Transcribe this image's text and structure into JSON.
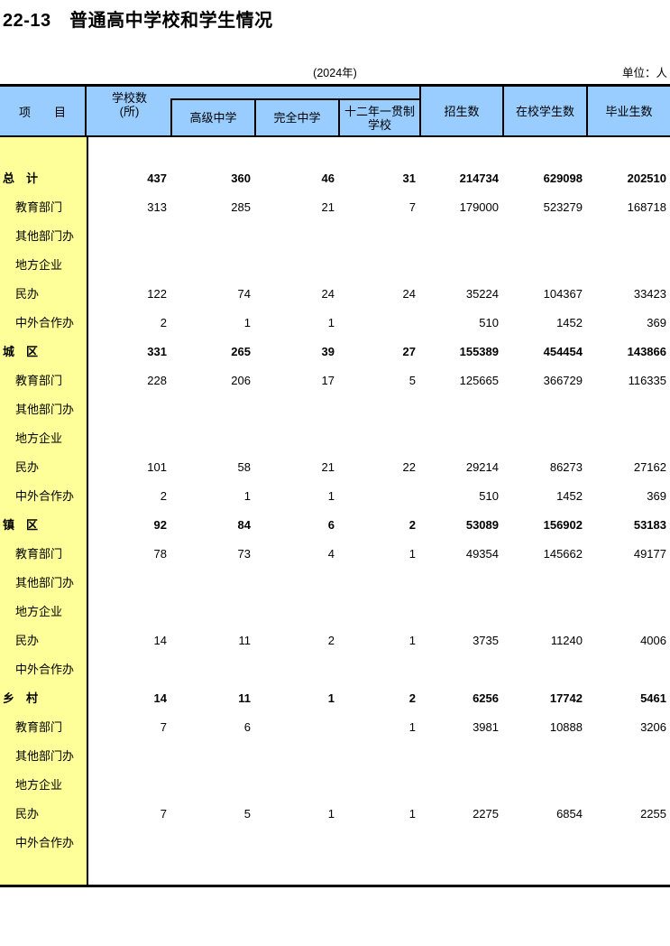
{
  "page": {
    "title": "22-13　普通高中学校和学生情况",
    "year_note": "(2024年)",
    "unit_note": "单位：人"
  },
  "colors": {
    "header_bg": "#99CCFF",
    "label_col_bg": "#FFFF99",
    "border": "#000000"
  },
  "table": {
    "header": {
      "col_item": "项　　目",
      "col_schools_line1": "学校数",
      "col_schools_line2": "(所)",
      "col_senior_high": "高级中学",
      "col_complete_middle": "完全中学",
      "col_twelve_year_line1": "十二年一贯制",
      "col_twelve_year_line2": "学校",
      "col_enrollment": "招生数",
      "col_students_on_roll": "在校学生数",
      "col_graduates": "毕业生数"
    },
    "rows": [
      {
        "label": "总　计",
        "bold": true,
        "values": [
          "437",
          "360",
          "46",
          "31",
          "214734",
          "629098",
          "202510"
        ]
      },
      {
        "label": "教育部门",
        "bold": false,
        "values": [
          "313",
          "285",
          "21",
          "7",
          "179000",
          "523279",
          "168718"
        ]
      },
      {
        "label": "其他部门办",
        "bold": false,
        "values": [
          "",
          "",
          "",
          "",
          "",
          "",
          ""
        ]
      },
      {
        "label": "地方企业",
        "bold": false,
        "values": [
          "",
          "",
          "",
          "",
          "",
          "",
          ""
        ]
      },
      {
        "label": "民办",
        "bold": false,
        "values": [
          "122",
          "74",
          "24",
          "24",
          "35224",
          "104367",
          "33423"
        ]
      },
      {
        "label": "中外合作办",
        "bold": false,
        "values": [
          "2",
          "1",
          "1",
          "",
          "510",
          "1452",
          "369"
        ]
      },
      {
        "label": "城　区",
        "bold": true,
        "values": [
          "331",
          "265",
          "39",
          "27",
          "155389",
          "454454",
          "143866"
        ]
      },
      {
        "label": "教育部门",
        "bold": false,
        "values": [
          "228",
          "206",
          "17",
          "5",
          "125665",
          "366729",
          "116335"
        ]
      },
      {
        "label": "其他部门办",
        "bold": false,
        "values": [
          "",
          "",
          "",
          "",
          "",
          "",
          ""
        ]
      },
      {
        "label": "地方企业",
        "bold": false,
        "values": [
          "",
          "",
          "",
          "",
          "",
          "",
          ""
        ]
      },
      {
        "label": "民办",
        "bold": false,
        "values": [
          "101",
          "58",
          "21",
          "22",
          "29214",
          "86273",
          "27162"
        ]
      },
      {
        "label": "中外合作办",
        "bold": false,
        "values": [
          "2",
          "1",
          "1",
          "",
          "510",
          "1452",
          "369"
        ]
      },
      {
        "label": "镇　区",
        "bold": true,
        "values": [
          "92",
          "84",
          "6",
          "2",
          "53089",
          "156902",
          "53183"
        ]
      },
      {
        "label": "教育部门",
        "bold": false,
        "values": [
          "78",
          "73",
          "4",
          "1",
          "49354",
          "145662",
          "49177"
        ]
      },
      {
        "label": "其他部门办",
        "bold": false,
        "values": [
          "",
          "",
          "",
          "",
          "",
          "",
          ""
        ]
      },
      {
        "label": "地方企业",
        "bold": false,
        "values": [
          "",
          "",
          "",
          "",
          "",
          "",
          ""
        ]
      },
      {
        "label": "民办",
        "bold": false,
        "values": [
          "14",
          "11",
          "2",
          "1",
          "3735",
          "11240",
          "4006"
        ]
      },
      {
        "label": "中外合作办",
        "bold": false,
        "values": [
          "",
          "",
          "",
          "",
          "",
          "",
          ""
        ]
      },
      {
        "label": "乡　村",
        "bold": true,
        "values": [
          "14",
          "11",
          "1",
          "2",
          "6256",
          "17742",
          "5461"
        ]
      },
      {
        "label": "教育部门",
        "bold": false,
        "values": [
          "7",
          "6",
          "",
          "1",
          "3981",
          "10888",
          "3206"
        ]
      },
      {
        "label": "其他部门办",
        "bold": false,
        "values": [
          "",
          "",
          "",
          "",
          "",
          "",
          ""
        ]
      },
      {
        "label": "地方企业",
        "bold": false,
        "values": [
          "",
          "",
          "",
          "",
          "",
          "",
          ""
        ]
      },
      {
        "label": "民办",
        "bold": false,
        "values": [
          "7",
          "5",
          "1",
          "1",
          "2275",
          "6854",
          "2255"
        ]
      },
      {
        "label": "中外合作办",
        "bold": false,
        "values": [
          "",
          "",
          "",
          "",
          "",
          "",
          ""
        ]
      }
    ]
  }
}
